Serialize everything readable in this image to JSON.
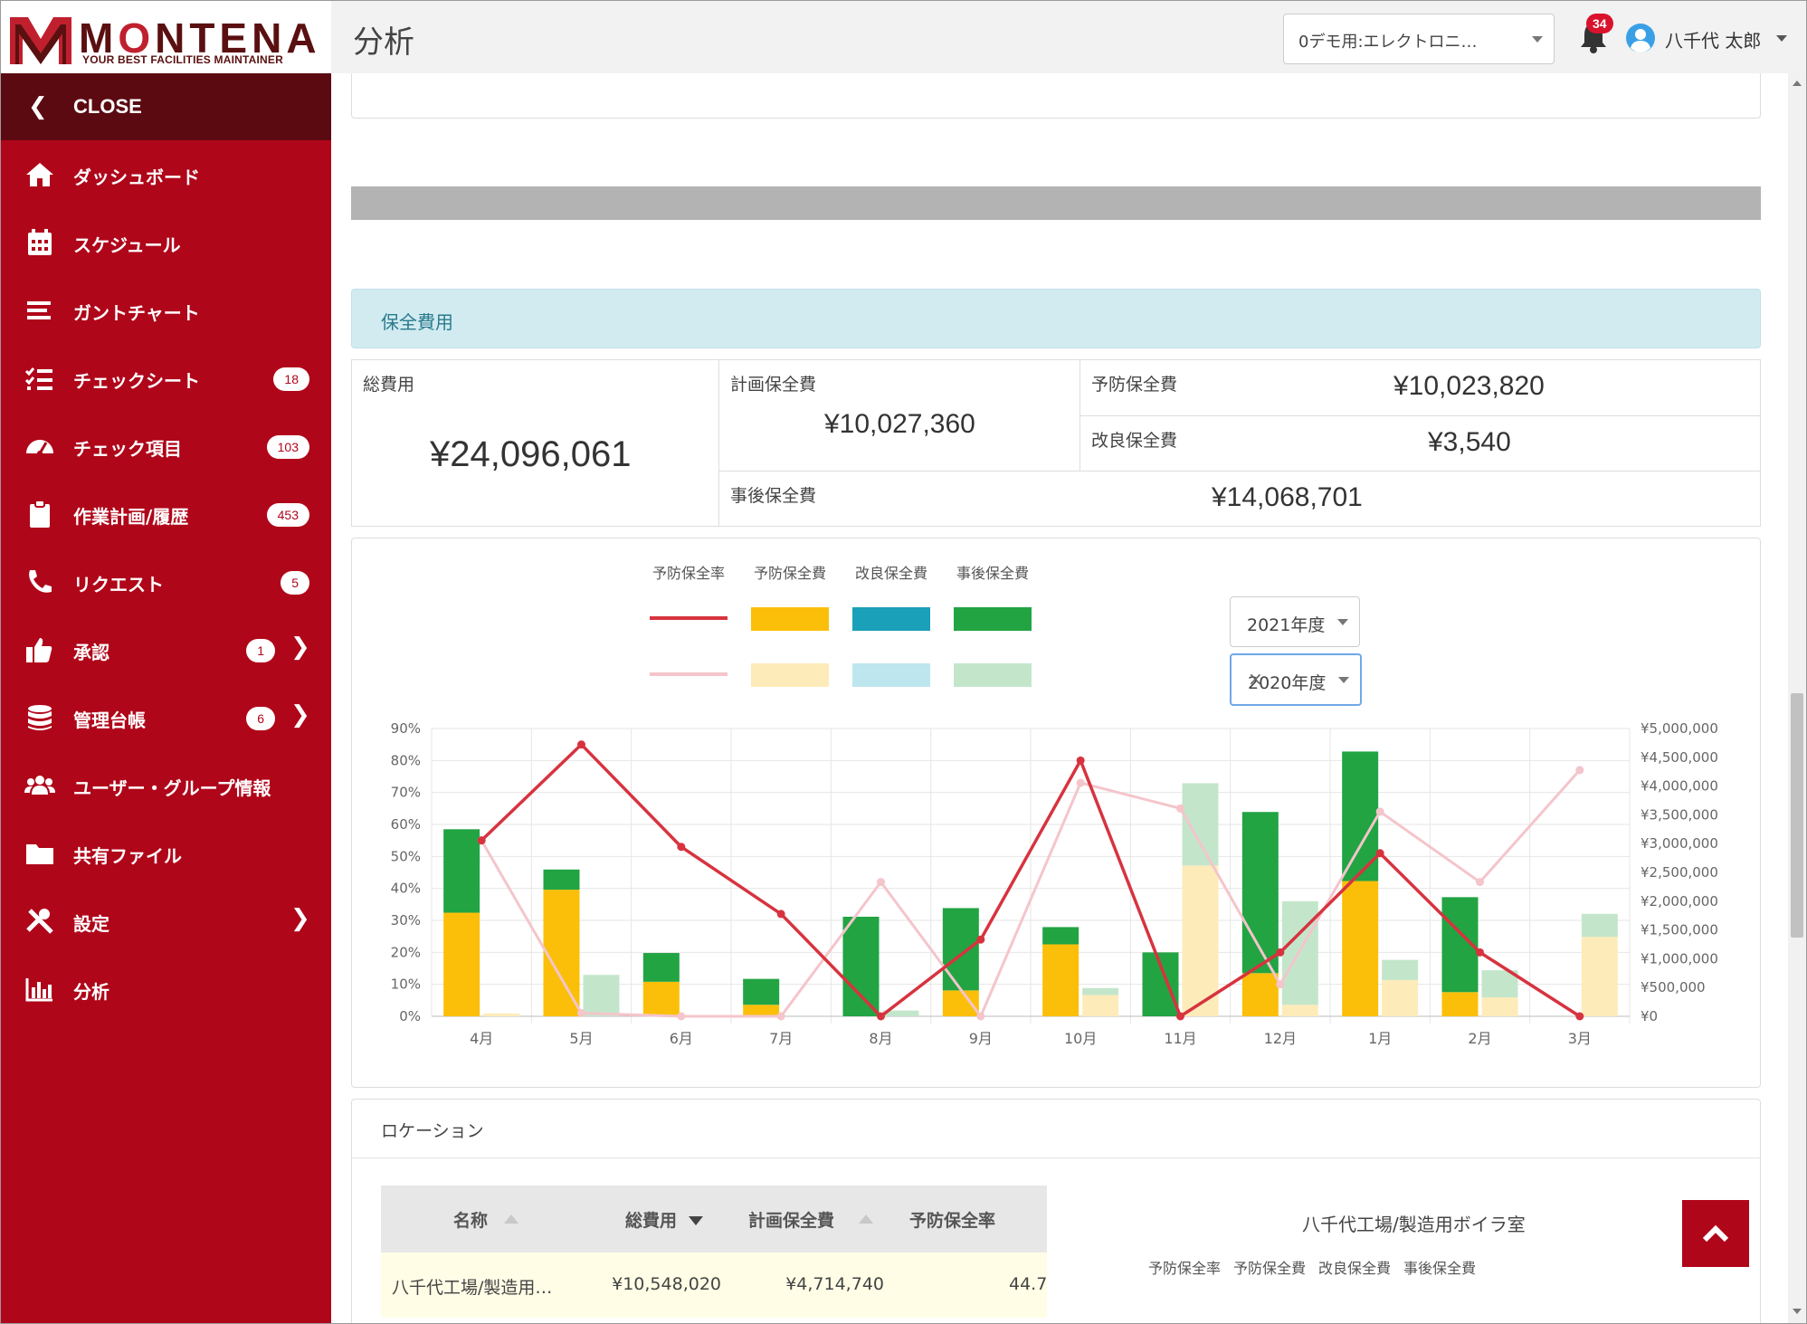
{
  "app": {
    "logo_text_a": "M",
    "logo_text_o": "O",
    "logo_text_b": "NTENA",
    "logo_tagline": "YOUR BEST FACILITIES MAINTAINER"
  },
  "header": {
    "title": "分析",
    "site_select": "0デモ用:エレクトロニ…",
    "notifications": "34",
    "user_name": "八千代 太郎"
  },
  "sidebar": {
    "close_label": "CLOSE",
    "items": [
      {
        "label": "ダッシュボード",
        "icon": "home-icon",
        "badge": ""
      },
      {
        "label": "スケジュール",
        "icon": "calendar-icon",
        "badge": ""
      },
      {
        "label": "ガントチャート",
        "icon": "bars-icon",
        "badge": ""
      },
      {
        "label": "チェックシート",
        "icon": "checklist-icon",
        "badge": "18"
      },
      {
        "label": "チェック項目",
        "icon": "gauge-icon",
        "badge": "103"
      },
      {
        "label": "作業計画/履歴",
        "icon": "clipboard-icon",
        "badge": "453"
      },
      {
        "label": "リクエスト",
        "icon": "phone-icon",
        "badge": "5"
      },
      {
        "label": "承認",
        "icon": "thumbs-up-icon",
        "badge": "1"
      },
      {
        "label": "管理台帳",
        "icon": "database-icon",
        "badge": "6"
      },
      {
        "label": "ユーザー・グループ情報",
        "icon": "users-icon",
        "badge": ""
      },
      {
        "label": "共有ファイル",
        "icon": "folder-icon",
        "badge": ""
      },
      {
        "label": "設定",
        "icon": "tools-icon",
        "badge": ""
      },
      {
        "label": "分析",
        "icon": "bar-chart-icon",
        "badge": ""
      }
    ]
  },
  "costs": {
    "section_title": "保全費用",
    "total_label": "総費用",
    "total_value": "¥24,096,061",
    "planned_label": "計画保全費",
    "planned_value": "¥10,027,360",
    "preventive_label": "予防保全費",
    "preventive_value": "¥10,023,820",
    "improvement_label": "改良保全費",
    "improvement_value": "¥3,540",
    "breakdown_label": "事後保全費",
    "breakdown_value": "¥14,068,701"
  },
  "chart_controls": {
    "year_primary": "2021年度",
    "year_compare": "2020年度",
    "clear_symbol": "×"
  },
  "chart_data": {
    "type": "bar",
    "categories": [
      "4月",
      "5月",
      "6月",
      "7月",
      "8月",
      "9月",
      "10月",
      "11月",
      "12月",
      "1月",
      "2月",
      "3月"
    ],
    "y_left_ticks": [
      "0%",
      "10%",
      "20%",
      "30%",
      "40%",
      "50%",
      "60%",
      "70%",
      "80%",
      "90%"
    ],
    "y_right_ticks": [
      "¥0",
      "¥500,000",
      "¥1,000,000",
      "¥1,500,000",
      "¥2,000,000",
      "¥2,500,000",
      "¥3,000,000",
      "¥3,500,000",
      "¥4,000,000",
      "¥4,500,000",
      "¥5,000,000"
    ],
    "ylim_left": [
      0,
      90
    ],
    "ylim_right": [
      0,
      5000000
    ],
    "legend": [
      "予防保全率",
      "予防保全費",
      "改良保全費",
      "事後保全費"
    ],
    "colors": {
      "rate_2021": "#d7333f",
      "rate_2020": "#f4c5cb",
      "prev_2021": "#fbbf0a",
      "prev_2020": "#fdebb9",
      "impr_2021": "#1aa0b8",
      "impr_2020": "#bde6ef",
      "post_2021": "#22a443",
      "post_2020": "#c3e6cb"
    },
    "series_2021": {
      "preventive": [
        1800000,
        2200000,
        600000,
        200000,
        0,
        450000,
        1250000,
        0,
        750000,
        2350000,
        420000,
        0
      ],
      "improvement": [
        0,
        0,
        0,
        0,
        0,
        0,
        0,
        0,
        0,
        0,
        0,
        0
      ],
      "post": [
        1450000,
        350000,
        500000,
        450000,
        1730000,
        1430000,
        300000,
        1110000,
        2800000,
        2250000,
        1650000,
        0
      ],
      "rate": [
        55,
        85,
        53,
        32,
        0,
        24,
        80,
        0,
        20,
        51,
        20,
        0
      ]
    },
    "series_2020": {
      "preventive": [
        50000,
        0,
        0,
        0,
        0,
        0,
        370000,
        2620000,
        200000,
        630000,
        330000,
        1380000
      ],
      "improvement": [
        0,
        0,
        0,
        0,
        0,
        0,
        0,
        0,
        0,
        0,
        0,
        0
      ],
      "post": [
        0,
        720000,
        0,
        0,
        100000,
        0,
        120000,
        1430000,
        1800000,
        350000,
        470000,
        400000
      ],
      "rate": [
        55,
        1,
        0,
        0,
        42,
        0,
        73,
        65,
        10,
        64,
        42,
        77
      ]
    }
  },
  "location": {
    "title": "ロケーション",
    "columns": [
      "名称",
      "総費用",
      "計画保全費",
      "予防保全率"
    ],
    "row": [
      "八千代工場/製造用…",
      "¥10,548,020",
      "¥4,714,740",
      "44.7"
    ],
    "detail_title": "八千代工場/製造用ボイラ室",
    "mini_legend": [
      "予防保全率",
      "予防保全費",
      "改良保全費",
      "事後保全費"
    ]
  }
}
